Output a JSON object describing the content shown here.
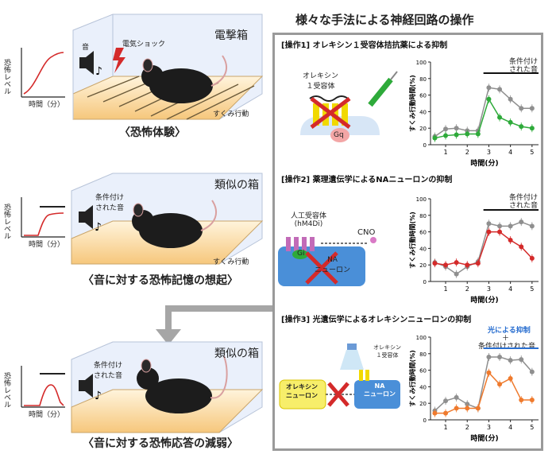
{
  "header": {
    "title": "様々な手法による神経回路の操作"
  },
  "left": {
    "rows": [
      {
        "box_label": "電撃箱",
        "caption": "〈恐怖体験〉",
        "sound": "音",
        "shock": "電気ショック",
        "behavior": "すくみ行動",
        "ylabel": "恐怖レベル",
        "xlabel": "時間（分）"
      },
      {
        "box_label": "類似の箱",
        "caption": "〈音に対する恐怖記憶の想起〉",
        "sound": "条件付け\nされた音",
        "behavior": "すくみ行動",
        "ylabel": "恐怖レベル",
        "xlabel": "時間（分）"
      },
      {
        "box_label": "類似の箱",
        "caption": "〈音に対する恐怖応答の減弱〉",
        "sound": "条件付け\nされた音",
        "ylabel": "恐怖レベル",
        "xlabel": "時間（分）"
      }
    ]
  },
  "ops": [
    {
      "title": "[操作1] オレキシン１受容体拮抗薬による抑制",
      "receptor": "オレキシン\n１受容体",
      "gq": "Gq",
      "annot": "条件付け\nされた音"
    },
    {
      "title": "[操作2] 薬理遺伝学によるNAニューロンの抑制",
      "receptor": "人工受容体\n(hM4Di)",
      "cno": "CNO",
      "gi": "Gi",
      "cell": "NA\nニューロン",
      "annot": "条件付け\nされた音"
    },
    {
      "title": "[操作3] 光遺伝学によるオレキシンニューロンの抑制",
      "receptor": "オレキシン\n１受容体",
      "left_cell": "オレキシン\nニューロン",
      "right_cell": "NA\nニューロン",
      "annot_blue": "光による抑制",
      "annot_plus": "＋",
      "annot": "条件付けされた音"
    }
  ],
  "colors": {
    "frame": "#9a9a9a",
    "red": "#d42a2a",
    "green": "#2eaa3a",
    "orange": "#ef7a2d",
    "gray": "#8f8f8f",
    "blue_cell": "#4a8fd8",
    "yellow": "#f1d900"
  },
  "chart_data": [
    {
      "type": "line",
      "xlabel": "時間(分)",
      "ylabel": "すくみ行動時間(%)",
      "ylim": [
        0,
        100
      ],
      "xticks": [
        1,
        2,
        3,
        4,
        5
      ],
      "yticks": [
        0,
        20,
        40,
        60,
        80,
        100
      ],
      "x": [
        0.5,
        1.0,
        1.5,
        2.0,
        2.5,
        3.0,
        3.5,
        4.0,
        4.5,
        5.0
      ],
      "series": [
        {
          "color": "gray",
          "values": [
            10,
            19,
            20,
            17,
            17,
            69,
            67,
            55,
            44,
            44
          ]
        },
        {
          "color": "green",
          "values": [
            8,
            11,
            12,
            13,
            13,
            55,
            33,
            27,
            22,
            20
          ]
        }
      ]
    },
    {
      "type": "line",
      "xlabel": "時間(分)",
      "ylabel": "すくみ行動時間(%)",
      "ylim": [
        0,
        100
      ],
      "xticks": [
        1,
        2,
        3,
        4,
        5
      ],
      "yticks": [
        0,
        20,
        40,
        60,
        80,
        100
      ],
      "x": [
        0.5,
        1.0,
        1.5,
        2.0,
        2.5,
        3.0,
        3.5,
        4.0,
        4.5,
        5.0
      ],
      "series": [
        {
          "color": "gray",
          "values": [
            23,
            18,
            9,
            18,
            24,
            70,
            67,
            67,
            72,
            67
          ]
        },
        {
          "color": "red",
          "values": [
            22,
            20,
            23,
            20,
            22,
            60,
            60,
            50,
            42,
            28
          ]
        }
      ]
    },
    {
      "type": "line",
      "xlabel": "時間(分)",
      "ylabel": "すくみ行動時間(%)",
      "ylim": [
        0,
        100
      ],
      "xticks": [
        1,
        2,
        3,
        4,
        5
      ],
      "yticks": [
        0,
        20,
        40,
        60,
        80,
        100
      ],
      "x": [
        0.5,
        1.0,
        1.5,
        2.0,
        2.5,
        3.0,
        3.5,
        4.0,
        4.5,
        5.0
      ],
      "series": [
        {
          "color": "gray",
          "values": [
            11,
            23,
            27,
            19,
            14,
            76,
            76,
            72,
            73,
            58
          ]
        },
        {
          "color": "orange",
          "values": [
            8,
            8,
            14,
            14,
            14,
            57,
            43,
            50,
            24,
            24
          ]
        }
      ]
    }
  ]
}
